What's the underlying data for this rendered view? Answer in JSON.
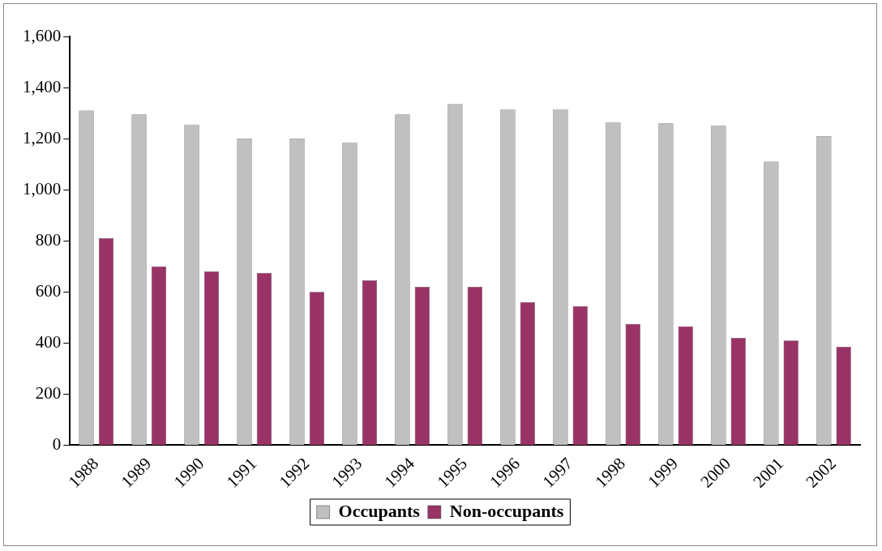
{
  "chart_data": {
    "type": "bar",
    "categories": [
      "1988",
      "1989",
      "1990",
      "1991",
      "1992",
      "1993",
      "1994",
      "1995",
      "1996",
      "1997",
      "1998",
      "1999",
      "2000",
      "2001",
      "2002"
    ],
    "series": [
      {
        "name": "Occupants",
        "color": "#c0c0c0",
        "values": [
          1310,
          1295,
          1255,
          1200,
          1200,
          1185,
          1295,
          1335,
          1315,
          1315,
          1265,
          1260,
          1250,
          1110,
          1210
        ]
      },
      {
        "name": "Non-occupants",
        "color": "#993366",
        "values": [
          810,
          700,
          680,
          675,
          600,
          645,
          620,
          620,
          560,
          545,
          475,
          465,
          420,
          410,
          385
        ]
      }
    ],
    "ylim": [
      0,
      1600
    ],
    "yticks": [
      0,
      200,
      400,
      600,
      800,
      {
        "value": 1000,
        "label": "1,000"
      },
      {
        "value": 1200,
        "label": "1,200"
      },
      {
        "value": 1400,
        "label": "1,400"
      },
      {
        "value": 1600,
        "label": "1,600"
      }
    ],
    "grid": false,
    "legend": "bottom"
  }
}
